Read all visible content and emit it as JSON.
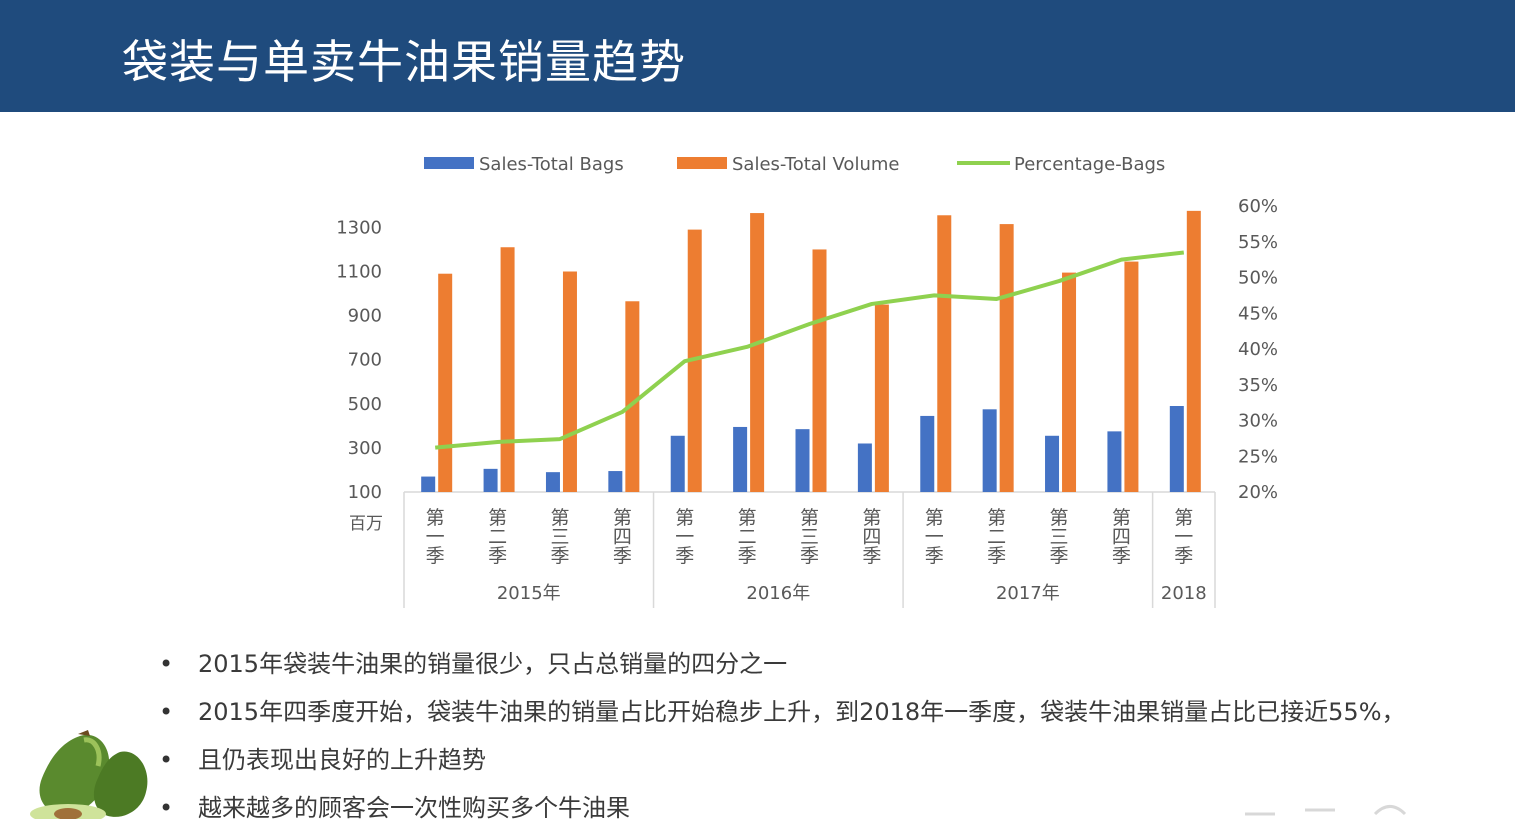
{
  "page": {
    "title": "袋装与单卖牛油果销量趋势"
  },
  "colors": {
    "header_bg": "#1f4b7d",
    "bags": "#4472c4",
    "volume": "#ed7d31",
    "percentage": "#8fd14f"
  },
  "chart_data": {
    "type": "bar+line",
    "legend": [
      "Sales-Total Bags",
      "Sales-Total Volume",
      "Percentage-Bags"
    ],
    "legend_position": "top",
    "unit_label": "百万",
    "categories": [
      "第一季",
      "第二季",
      "第三季",
      "第四季",
      "第一季",
      "第二季",
      "第三季",
      "第四季",
      "第一季",
      "第二季",
      "第三季",
      "第四季",
      "第一季"
    ],
    "category_chars": [
      [
        "第",
        "一",
        "季"
      ],
      [
        "第",
        "二",
        "季"
      ],
      [
        "第",
        "三",
        "季"
      ],
      [
        "第",
        "四",
        "季"
      ],
      [
        "第",
        "一",
        "季"
      ],
      [
        "第",
        "二",
        "季"
      ],
      [
        "第",
        "三",
        "季"
      ],
      [
        "第",
        "四",
        "季"
      ],
      [
        "第",
        "一",
        "季"
      ],
      [
        "第",
        "二",
        "季"
      ],
      [
        "第",
        "三",
        "季"
      ],
      [
        "第",
        "四",
        "季"
      ],
      [
        "第",
        "一",
        "季"
      ]
    ],
    "years": [
      {
        "label": "2015年",
        "start": 0,
        "count": 4
      },
      {
        "label": "2016年",
        "start": 4,
        "count": 4
      },
      {
        "label": "2017年",
        "start": 8,
        "count": 4
      },
      {
        "label": "2018",
        "start": 12,
        "count": 1
      }
    ],
    "series": [
      {
        "name": "Sales-Total Bags",
        "axis": "left",
        "type": "bar",
        "values": [
          170,
          205,
          190,
          195,
          355,
          395,
          385,
          320,
          445,
          475,
          355,
          375,
          490
        ]
      },
      {
        "name": "Sales-Total Volume",
        "axis": "left",
        "type": "bar",
        "values": [
          1090,
          1210,
          1100,
          965,
          1290,
          1365,
          1200,
          950,
          1355,
          1315,
          1095,
          1145,
          1375
        ]
      },
      {
        "name": "Percentage-Bags",
        "axis": "right",
        "type": "line",
        "values": [
          0.262,
          0.27,
          0.274,
          0.312,
          0.383,
          0.403,
          0.435,
          0.463,
          0.475,
          0.47,
          0.495,
          0.525,
          0.535
        ]
      }
    ],
    "left_axis": {
      "ticks": [
        "1300",
        "1100",
        "900",
        "700",
        "500",
        "300",
        "100"
      ],
      "range": [
        100,
        1400
      ]
    },
    "right_axis": {
      "ticks": [
        "60%",
        "55%",
        "50%",
        "45%",
        "40%",
        "35%",
        "30%",
        "25%",
        "20%"
      ],
      "range": [
        0.2,
        0.6
      ]
    }
  },
  "bullets": [
    "2015年袋装牛油果的销量很少，只占总销量的四分之一",
    "2015年四季度开始，袋装牛油果的销量占比开始稳步上升，到2018年一季度，袋装牛油果销量占比已接近55%，",
    "且仍表现出良好的上升趋势",
    "越来越多的顾客会一次性购买多个牛油果"
  ]
}
